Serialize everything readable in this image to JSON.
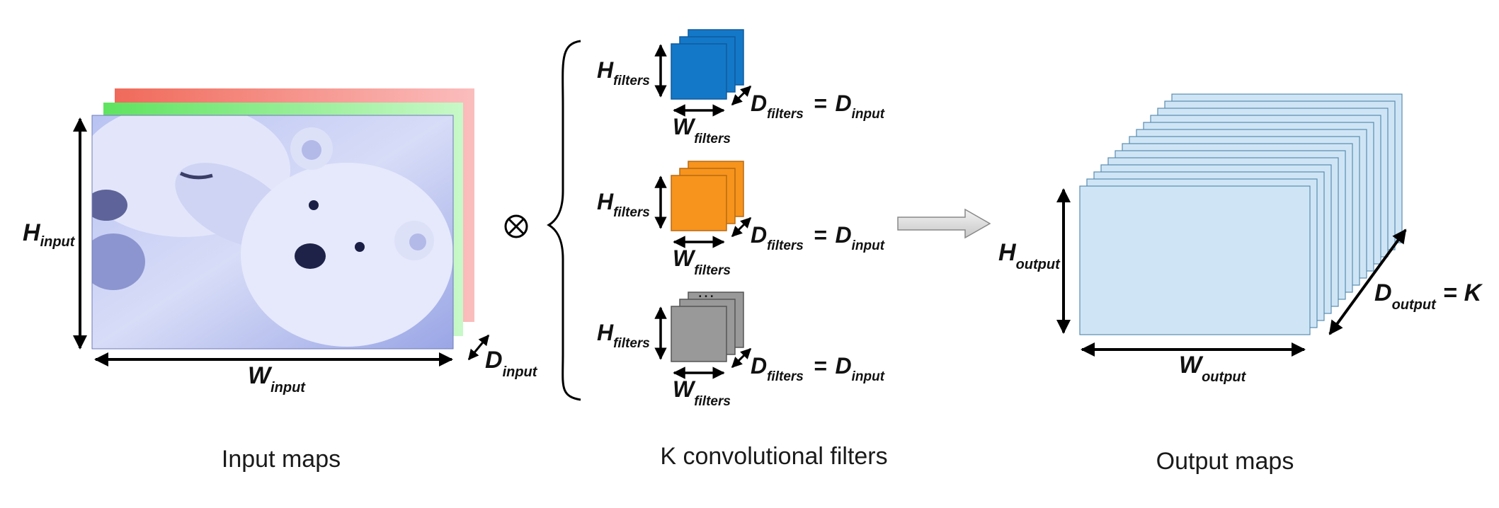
{
  "captions": {
    "input": "Input maps",
    "filters": "K convolutional filters",
    "output": "Output maps"
  },
  "input_block": {
    "h_main": "H",
    "h_sub": "input",
    "w_main": "W",
    "w_sub": "input",
    "d_main": "D",
    "d_sub": "input"
  },
  "filters": [
    {
      "h_main": "H",
      "h_sub": "filters",
      "w_main": "W",
      "w_sub": "filters",
      "d_main": "D",
      "d_sub": "filters",
      "eq": "=",
      "rhs_main": "D",
      "rhs_sub": "input",
      "color": "#1478c8"
    },
    {
      "h_main": "H",
      "h_sub": "filters",
      "w_main": "W",
      "w_sub": "filters",
      "d_main": "D",
      "d_sub": "filters",
      "eq": "=",
      "rhs_main": "D",
      "rhs_sub": "input",
      "color": "#f7941d"
    },
    {
      "h_main": "H",
      "h_sub": "filters",
      "w_main": "W",
      "w_sub": "filters",
      "d_main": "D",
      "d_sub": "filters",
      "eq": "=",
      "rhs_main": "D",
      "rhs_sub": "input",
      "color": "#999999"
    }
  ],
  "ellipsis": "…",
  "operator": "⊗",
  "output_block": {
    "h_main": "H",
    "h_sub": "output",
    "w_main": "W",
    "w_sub": "output",
    "d_main": "D",
    "d_sub": "output",
    "eq": "=",
    "rhs": "K",
    "map_color": "#cfe5f5",
    "map_stroke": "#5a8cb0"
  },
  "channel_colors": {
    "red": "#f07070",
    "green": "#66ee66",
    "blue": "#9aa8f0"
  },
  "icons": {
    "operator": "convolution-operator-icon",
    "arrow": "right-arrow-icon",
    "brace": "left-brace-icon",
    "photo": "polar-bear-photo"
  }
}
